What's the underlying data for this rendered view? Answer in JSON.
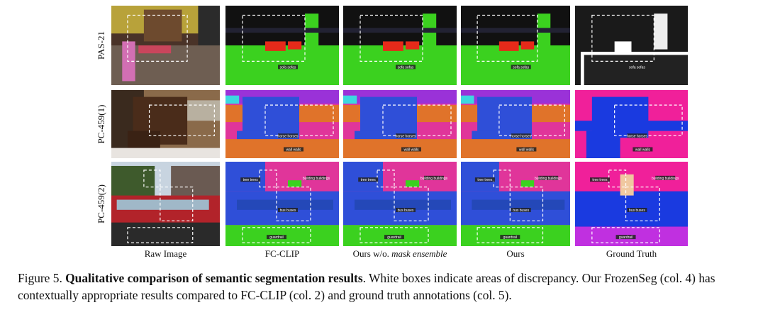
{
  "rows": [
    {
      "label": "PAS-21",
      "tags": [
        "sofa sofas"
      ]
    },
    {
      "label": "PC-459(1)",
      "tags": [
        "horse horses",
        "wall walls"
      ]
    },
    {
      "label": "PC-459(2)",
      "tags": [
        "building buildings",
        "bus buses",
        "guardrail",
        "tree trees"
      ]
    }
  ],
  "columns": [
    {
      "label": "Raw Image"
    },
    {
      "label": "FC-CLIP"
    },
    {
      "label": "Ours w/o.",
      "emphasis": "mask ensemble"
    },
    {
      "label": "Ours"
    },
    {
      "label": "Ground Truth"
    }
  ],
  "caption": {
    "label": "Figure 5.",
    "title": "Qualitative comparison of semantic segmentation results",
    "text": ". White boxes indicate areas of discrepancy. Our FrozenSeg (col. 4) has contextually appropriate results compared to FC-CLIP (col. 2) and ground truth annotations (col. 5)."
  }
}
